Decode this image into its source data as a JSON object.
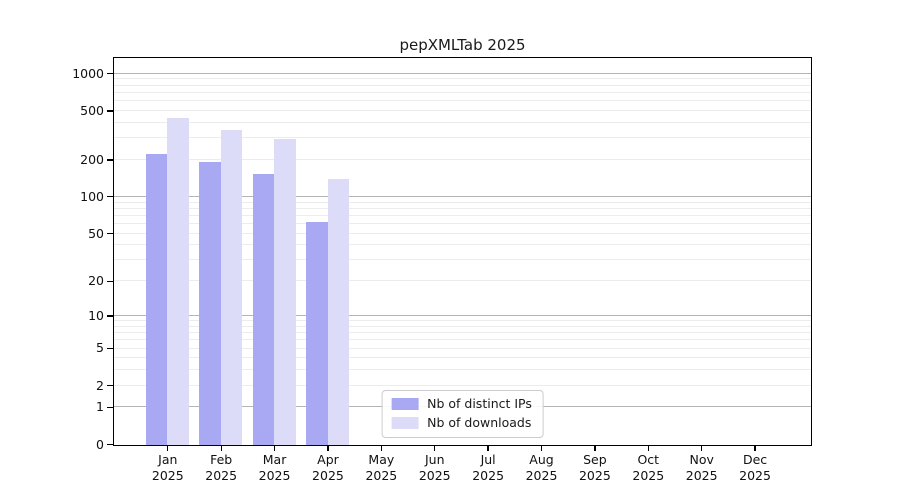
{
  "title": "pepXMLTab 2025",
  "style": {
    "background": "#ffffff",
    "bar_distinct_ips": "#a9a9f3",
    "bar_downloads": "#dcdcf8",
    "grid_major_color": "#b5b5b5",
    "grid_minor_color": "#ececec",
    "axis_color": "#000000",
    "text_color": "#1a1a1a",
    "legend_border_color": "#cccccc"
  },
  "chart_data": {
    "type": "bar",
    "title": "pepXMLTab 2025",
    "xlabel": "",
    "ylabel": "",
    "yscale": "log1p",
    "ylim": [
      0,
      1330
    ],
    "yticks": [
      0,
      1,
      2,
      5,
      10,
      20,
      50,
      100,
      200,
      500,
      1000
    ],
    "grid": true,
    "grid_major": [
      1,
      10,
      100,
      1000
    ],
    "grid_minor": [
      2,
      3,
      4,
      5,
      6,
      7,
      8,
      9,
      20,
      30,
      40,
      50,
      60,
      70,
      80,
      90,
      200,
      300,
      400,
      500,
      600,
      700,
      800,
      900
    ],
    "legend_position": "lower center",
    "categories": [
      {
        "label": "Jan",
        "year": "2025"
      },
      {
        "label": "Feb",
        "year": "2025"
      },
      {
        "label": "Mar",
        "year": "2025"
      },
      {
        "label": "Apr",
        "year": "2025"
      },
      {
        "label": "May",
        "year": "2025"
      },
      {
        "label": "Jun",
        "year": "2025"
      },
      {
        "label": "Jul",
        "year": "2025"
      },
      {
        "label": "Aug",
        "year": "2025"
      },
      {
        "label": "Sep",
        "year": "2025"
      },
      {
        "label": "Oct",
        "year": "2025"
      },
      {
        "label": "Nov",
        "year": "2025"
      },
      {
        "label": "Dec",
        "year": "2025"
      }
    ],
    "series": [
      {
        "key": "distinct_ips",
        "name": "Nb of distinct IPs",
        "color": "#a9a9f3",
        "values": [
          225,
          195,
          155,
          63,
          null,
          null,
          null,
          null,
          null,
          null,
          null,
          null
        ]
      },
      {
        "key": "downloads",
        "name": "Nb of downloads",
        "color": "#dcdcf8",
        "values": [
          440,
          350,
          300,
          142,
          null,
          null,
          null,
          null,
          null,
          null,
          null,
          null
        ]
      }
    ]
  }
}
